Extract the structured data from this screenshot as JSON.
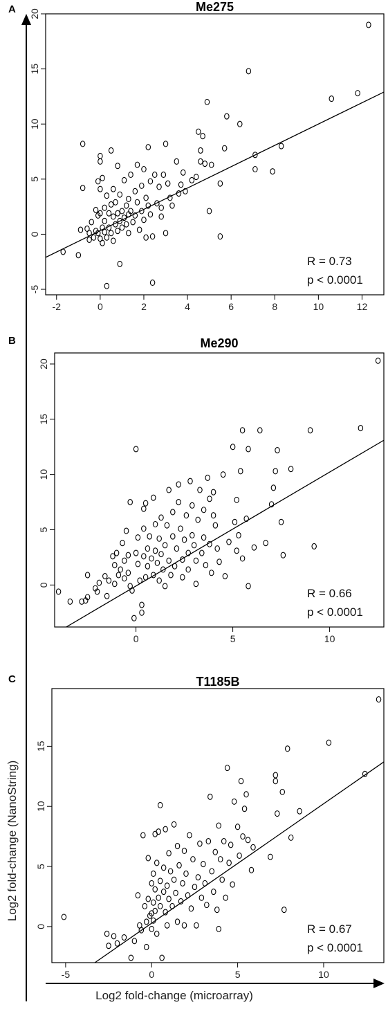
{
  "axes": {
    "xlabel": "Log2 fold-change (microarray)",
    "ylabel": "Log2 fold-change (NanoString)"
  },
  "chart_data": [
    {
      "type": "scatter",
      "panel": "A",
      "title": "Me275",
      "xlim": [
        -2.5,
        13
      ],
      "ylim": [
        -5.5,
        20
      ],
      "xticks": [
        "-2",
        "0",
        "2",
        "4",
        "6",
        "8",
        "10",
        "12"
      ],
      "xtick_values": [
        -2,
        0,
        2,
        4,
        6,
        8,
        10,
        12
      ],
      "yticks": [
        "-5",
        "0",
        "5",
        "10",
        "15",
        "20"
      ],
      "ytick_values": [
        -5,
        0,
        5,
        10,
        15,
        20
      ],
      "fit_line": {
        "x": [
          -2.5,
          13
        ],
        "y": [
          -2.1,
          12.9
        ]
      },
      "stats": {
        "r": "R = 0.73",
        "p": "p < 0.0001"
      },
      "points": [
        [
          -1.7,
          -1.6
        ],
        [
          -1,
          -1.9
        ],
        [
          -0.9,
          0.4
        ],
        [
          -0.8,
          4.2
        ],
        [
          -0.8,
          8.2
        ],
        [
          -0.6,
          0.5
        ],
        [
          -0.5,
          0.1
        ],
        [
          -0.5,
          -0.5
        ],
        [
          -0.4,
          1.1
        ],
        [
          -0.3,
          -0.3
        ],
        [
          -0.2,
          2.2
        ],
        [
          -0.2,
          0.3
        ],
        [
          -0.1,
          4.8
        ],
        [
          -0.1,
          1.7
        ],
        [
          -0.1,
          0.1
        ],
        [
          0,
          7.1
        ],
        [
          0,
          6.6
        ],
        [
          0,
          4.1
        ],
        [
          0,
          1.9
        ],
        [
          0,
          -0.4
        ],
        [
          0.1,
          5.1
        ],
        [
          0.1,
          0.6
        ],
        [
          0.1,
          -0.8
        ],
        [
          0.2,
          2.4
        ],
        [
          0.2,
          1.2
        ],
        [
          0.2,
          0.2
        ],
        [
          0.3,
          3.5
        ],
        [
          0.3,
          -0.3
        ],
        [
          0.3,
          -4.7
        ],
        [
          0.4,
          1.9
        ],
        [
          0.4,
          0.6
        ],
        [
          0.5,
          7.6
        ],
        [
          0.5,
          2.7
        ],
        [
          0.5,
          0.1
        ],
        [
          0.6,
          4.1
        ],
        [
          0.6,
          1.6
        ],
        [
          0.6,
          -0.6
        ],
        [
          0.7,
          2.9
        ],
        [
          0.7,
          0.9
        ],
        [
          0.8,
          6.2
        ],
        [
          0.8,
          1.9
        ],
        [
          0.8,
          0.3
        ],
        [
          0.9,
          3.6
        ],
        [
          0.9,
          1.2
        ],
        [
          0.9,
          -2.7
        ],
        [
          1,
          2.1
        ],
        [
          1,
          0.6
        ],
        [
          1.1,
          4.9
        ],
        [
          1.1,
          1.5
        ],
        [
          1.2,
          2.6
        ],
        [
          1.2,
          0.9
        ],
        [
          1.3,
          3.2
        ],
        [
          1.3,
          1.8
        ],
        [
          1.3,
          0.1
        ],
        [
          1.4,
          5.4
        ],
        [
          1.4,
          2.1
        ],
        [
          1.5,
          1.1
        ],
        [
          1.6,
          3.9
        ],
        [
          1.6,
          1.7
        ],
        [
          1.7,
          6.3
        ],
        [
          1.7,
          2.9
        ],
        [
          1.8,
          0.4
        ],
        [
          1.9,
          4.4
        ],
        [
          1.9,
          2.1
        ],
        [
          2,
          5.9
        ],
        [
          2,
          1.3
        ],
        [
          2.1,
          3.3
        ],
        [
          2.1,
          -0.3
        ],
        [
          2.2,
          7.9
        ],
        [
          2.2,
          2.6
        ],
        [
          2.3,
          4.8
        ],
        [
          2.3,
          1.8
        ],
        [
          2.4,
          -0.2
        ],
        [
          2.4,
          -4.4
        ],
        [
          2.5,
          5.4
        ],
        [
          2.6,
          2.8
        ],
        [
          2.7,
          4.3
        ],
        [
          2.8,
          2.4
        ],
        [
          2.8,
          1.6
        ],
        [
          2.9,
          5.4
        ],
        [
          3,
          8.2
        ],
        [
          3,
          0.1
        ],
        [
          3.1,
          4.6
        ],
        [
          3.2,
          3.3
        ],
        [
          3.3,
          2.6
        ],
        [
          3.5,
          6.6
        ],
        [
          3.6,
          3.7
        ],
        [
          3.7,
          4.5
        ],
        [
          3.8,
          5.6
        ],
        [
          3.9,
          3.9
        ],
        [
          4.2,
          4.9
        ],
        [
          4.4,
          5.2
        ],
        [
          4.5,
          9.3
        ],
        [
          4.6,
          7.6
        ],
        [
          4.6,
          6.6
        ],
        [
          4.7,
          8.9
        ],
        [
          4.8,
          6.4
        ],
        [
          4.9,
          12.0
        ],
        [
          5,
          2.1
        ],
        [
          5.1,
          6.3
        ],
        [
          5.5,
          4.6
        ],
        [
          5.5,
          -0.2
        ],
        [
          5.7,
          7.8
        ],
        [
          5.8,
          10.7
        ],
        [
          6.4,
          10.0
        ],
        [
          6.8,
          14.8
        ],
        [
          7.1,
          7.2
        ],
        [
          7.1,
          5.9
        ],
        [
          7.9,
          5.7
        ],
        [
          8.3,
          8.0
        ],
        [
          10.6,
          12.3
        ],
        [
          11.8,
          12.8
        ],
        [
          12.3,
          19.0
        ]
      ]
    },
    {
      "type": "scatter",
      "panel": "B",
      "title": "Me290",
      "xlim": [
        -4.2,
        12.8
      ],
      "ylim": [
        -3.8,
        21
      ],
      "xticks": [
        "0",
        "5",
        "10"
      ],
      "xtick_values": [
        0,
        5,
        10
      ],
      "yticks": [
        "0",
        "5",
        "10",
        "15",
        "20"
      ],
      "ytick_values": [
        0,
        5,
        10,
        15,
        20
      ],
      "fit_line": {
        "x": [
          -3.6,
          12.8
        ],
        "y": [
          -3.8,
          13.1
        ]
      },
      "stats": {
        "r": "R = 0.66",
        "p": "p < 0.0001"
      },
      "points": [
        [
          -4,
          -0.6
        ],
        [
          -3.4,
          -1.5
        ],
        [
          -2.8,
          -1.5
        ],
        [
          -2.6,
          -1.4
        ],
        [
          -2.5,
          -1.1
        ],
        [
          -2.5,
          0.9
        ],
        [
          -2.1,
          -0.3
        ],
        [
          -2,
          -0.6
        ],
        [
          -1.9,
          0.2
        ],
        [
          -1.6,
          0.8
        ],
        [
          -1.5,
          -1
        ],
        [
          -1.4,
          0.4
        ],
        [
          -1.2,
          2.6
        ],
        [
          -1.1,
          1.8
        ],
        [
          -1.1,
          0.1
        ],
        [
          -1,
          2.9
        ],
        [
          -0.9,
          0.9
        ],
        [
          -0.8,
          1.4
        ],
        [
          -0.7,
          3.8
        ],
        [
          -0.6,
          2.2
        ],
        [
          -0.6,
          0.6
        ],
        [
          -0.5,
          4.9
        ],
        [
          -0.4,
          2.7
        ],
        [
          -0.4,
          1.1
        ],
        [
          -0.3,
          7.5
        ],
        [
          -0.3,
          -0.1
        ],
        [
          -0.2,
          -0.5
        ],
        [
          -0.1,
          -3
        ],
        [
          0,
          12.3
        ],
        [
          0,
          2.9
        ],
        [
          0.1,
          4.3
        ],
        [
          0.1,
          1.9
        ],
        [
          0.2,
          0.4
        ],
        [
          0.3,
          -1.8
        ],
        [
          0.3,
          -2.5
        ],
        [
          0.4,
          6.9
        ],
        [
          0.4,
          5.1
        ],
        [
          0.4,
          2.6
        ],
        [
          0.5,
          7.4
        ],
        [
          0.5,
          0.7
        ],
        [
          0.6,
          3.3
        ],
        [
          0.6,
          1.7
        ],
        [
          0.7,
          4.4
        ],
        [
          0.8,
          2.4
        ],
        [
          0.9,
          0.9
        ],
        [
          0.9,
          7.9
        ],
        [
          1,
          5.5
        ],
        [
          1,
          3.1
        ],
        [
          1.1,
          2
        ],
        [
          1.2,
          4.2
        ],
        [
          1.2,
          0.4
        ],
        [
          1.3,
          6.1
        ],
        [
          1.3,
          2.8
        ],
        [
          1.4,
          1.4
        ],
        [
          1.5,
          3.6
        ],
        [
          1.5,
          -0.1
        ],
        [
          1.6,
          5.4
        ],
        [
          1.7,
          2.2
        ],
        [
          1.7,
          8.6
        ],
        [
          1.8,
          0.9
        ],
        [
          1.9,
          4.4
        ],
        [
          1.9,
          6.6
        ],
        [
          2,
          1.7
        ],
        [
          2.1,
          3.3
        ],
        [
          2.2,
          7.5
        ],
        [
          2.2,
          9.1
        ],
        [
          2.3,
          5.1
        ],
        [
          2.4,
          2.3
        ],
        [
          2.4,
          0.7
        ],
        [
          2.5,
          4.1
        ],
        [
          2.6,
          6.3
        ],
        [
          2.7,
          2.9
        ],
        [
          2.7,
          1.4
        ],
        [
          2.8,
          9.4
        ],
        [
          2.9,
          4.5
        ],
        [
          2.9,
          7.2
        ],
        [
          3,
          3.6
        ],
        [
          3.1,
          2.2
        ],
        [
          3.1,
          0.1
        ],
        [
          3.2,
          5.9
        ],
        [
          3.3,
          8.6
        ],
        [
          3.4,
          2.9
        ],
        [
          3.5,
          6.8
        ],
        [
          3.5,
          4.3
        ],
        [
          3.6,
          1.8
        ],
        [
          3.7,
          9.7
        ],
        [
          3.8,
          7.8
        ],
        [
          3.8,
          3.7
        ],
        [
          3.9,
          1.1
        ],
        [
          4,
          6.3
        ],
        [
          4,
          8.4
        ],
        [
          4.1,
          5.4
        ],
        [
          4.2,
          3.3
        ],
        [
          4.3,
          2.1
        ],
        [
          4.5,
          10
        ],
        [
          4.6,
          0.8
        ],
        [
          4.8,
          3.9
        ],
        [
          5,
          12.5
        ],
        [
          5.1,
          5.7
        ],
        [
          5.2,
          3.1
        ],
        [
          5.2,
          7.7
        ],
        [
          5.3,
          4.5
        ],
        [
          5.4,
          10.3
        ],
        [
          5.5,
          14
        ],
        [
          5.5,
          2.4
        ],
        [
          5.7,
          6
        ],
        [
          5.8,
          -0.1
        ],
        [
          5.8,
          12.3
        ],
        [
          6.1,
          3.4
        ],
        [
          6.4,
          14
        ],
        [
          6.7,
          3.8
        ],
        [
          7,
          7.3
        ],
        [
          7.1,
          8.8
        ],
        [
          7.2,
          10.3
        ],
        [
          7.3,
          12.2
        ],
        [
          7.5,
          5.7
        ],
        [
          7.6,
          2.7
        ],
        [
          8,
          10.5
        ],
        [
          9,
          14
        ],
        [
          9.2,
          3.5
        ],
        [
          11.6,
          14.2
        ],
        [
          12.5,
          20.3
        ]
      ]
    },
    {
      "type": "scatter",
      "panel": "C",
      "title": "T1185B",
      "xlim": [
        -5.8,
        13.5
      ],
      "ylim": [
        -3,
        19.8
      ],
      "xticks": [
        "-5",
        "0",
        "5",
        "10"
      ],
      "xtick_values": [
        -5,
        0,
        5,
        10
      ],
      "yticks": [
        "0",
        "5",
        "10",
        "15"
      ],
      "ytick_values": [
        0,
        5,
        10,
        15
      ],
      "fit_line": {
        "x": [
          -3.3,
          13.5
        ],
        "y": [
          -3.0,
          13.7
        ]
      },
      "stats": {
        "r": "R = 0.67",
        "p": "p < 0.0001"
      },
      "points": [
        [
          -5.1,
          0.8
        ],
        [
          -2.6,
          -0.6
        ],
        [
          -2.5,
          -1.6
        ],
        [
          -2.2,
          -0.8
        ],
        [
          -2,
          -1.4
        ],
        [
          -1.6,
          -0.9
        ],
        [
          -1.2,
          -2.6
        ],
        [
          -1,
          -1.2
        ],
        [
          -0.8,
          2.6
        ],
        [
          -0.7,
          0.1
        ],
        [
          -0.6,
          -0.3
        ],
        [
          -0.5,
          7.6
        ],
        [
          -0.4,
          1.7
        ],
        [
          -0.3,
          -1.7
        ],
        [
          -0.3,
          0.4
        ],
        [
          -0.2,
          5.7
        ],
        [
          -0.2,
          2.3
        ],
        [
          -0.1,
          0.9
        ],
        [
          0,
          3.6
        ],
        [
          0,
          1.1
        ],
        [
          0,
          -0.2
        ],
        [
          0.1,
          4.4
        ],
        [
          0.1,
          2
        ],
        [
          0.1,
          0.5
        ],
        [
          0.2,
          7.7
        ],
        [
          0.2,
          3.1
        ],
        [
          0.2,
          1.3
        ],
        [
          0.3,
          5.3
        ],
        [
          0.3,
          -0.6
        ],
        [
          0.4,
          7.9
        ],
        [
          0.4,
          2.4
        ],
        [
          0.5,
          10.1
        ],
        [
          0.5,
          3.8
        ],
        [
          0.5,
          1.7
        ],
        [
          0.6,
          -2.6
        ],
        [
          0.7,
          4.9
        ],
        [
          0.7,
          2.9
        ],
        [
          0.8,
          1.2
        ],
        [
          0.8,
          8.1
        ],
        [
          0.9,
          3.4
        ],
        [
          0.9,
          0.1
        ],
        [
          1,
          6.1
        ],
        [
          1,
          2.3
        ],
        [
          1.1,
          4.6
        ],
        [
          1.2,
          1.7
        ],
        [
          1.3,
          3.9
        ],
        [
          1.3,
          8.5
        ],
        [
          1.4,
          2.8
        ],
        [
          1.5,
          6.7
        ],
        [
          1.5,
          0.4
        ],
        [
          1.6,
          5.1
        ],
        [
          1.7,
          2.1
        ],
        [
          1.8,
          3.6
        ],
        [
          1.9,
          6.3
        ],
        [
          1.9,
          0.1
        ],
        [
          2,
          4.4
        ],
        [
          2.1,
          2.6
        ],
        [
          2.2,
          7.6
        ],
        [
          2.3,
          1.5
        ],
        [
          2.4,
          5.6
        ],
        [
          2.5,
          3.3
        ],
        [
          2.6,
          0.1
        ],
        [
          2.7,
          4.1
        ],
        [
          2.8,
          6.9
        ],
        [
          2.9,
          2.4
        ],
        [
          3,
          5.2
        ],
        [
          3.1,
          3.6
        ],
        [
          3.2,
          1.8
        ],
        [
          3.3,
          7.1
        ],
        [
          3.4,
          10.8
        ],
        [
          3.5,
          4.6
        ],
        [
          3.6,
          2.9
        ],
        [
          3.7,
          6.2
        ],
        [
          3.8,
          1.4
        ],
        [
          3.9,
          8.4
        ],
        [
          3.9,
          -0.2
        ],
        [
          4,
          5.6
        ],
        [
          4.1,
          3.9
        ],
        [
          4.2,
          7.1
        ],
        [
          4.3,
          2.4
        ],
        [
          4.4,
          13.2
        ],
        [
          4.5,
          5.3
        ],
        [
          4.6,
          6.8
        ],
        [
          4.7,
          3.5
        ],
        [
          4.8,
          10.4
        ],
        [
          5,
          8.3
        ],
        [
          5.1,
          5.9
        ],
        [
          5.2,
          12.1
        ],
        [
          5.3,
          7.5
        ],
        [
          5.4,
          9.8
        ],
        [
          5.5,
          11
        ],
        [
          5.6,
          7.2
        ],
        [
          5.8,
          4.7
        ],
        [
          5.9,
          6.6
        ],
        [
          6.9,
          5.8
        ],
        [
          7.2,
          12.6
        ],
        [
          7.2,
          12.1
        ],
        [
          7.3,
          9.4
        ],
        [
          7.6,
          11.2
        ],
        [
          7.7,
          1.4
        ],
        [
          7.9,
          14.8
        ],
        [
          8.1,
          7.4
        ],
        [
          8.6,
          9.6
        ],
        [
          10.3,
          15.3
        ],
        [
          12.4,
          12.7
        ],
        [
          13.2,
          18.9
        ]
      ]
    }
  ]
}
